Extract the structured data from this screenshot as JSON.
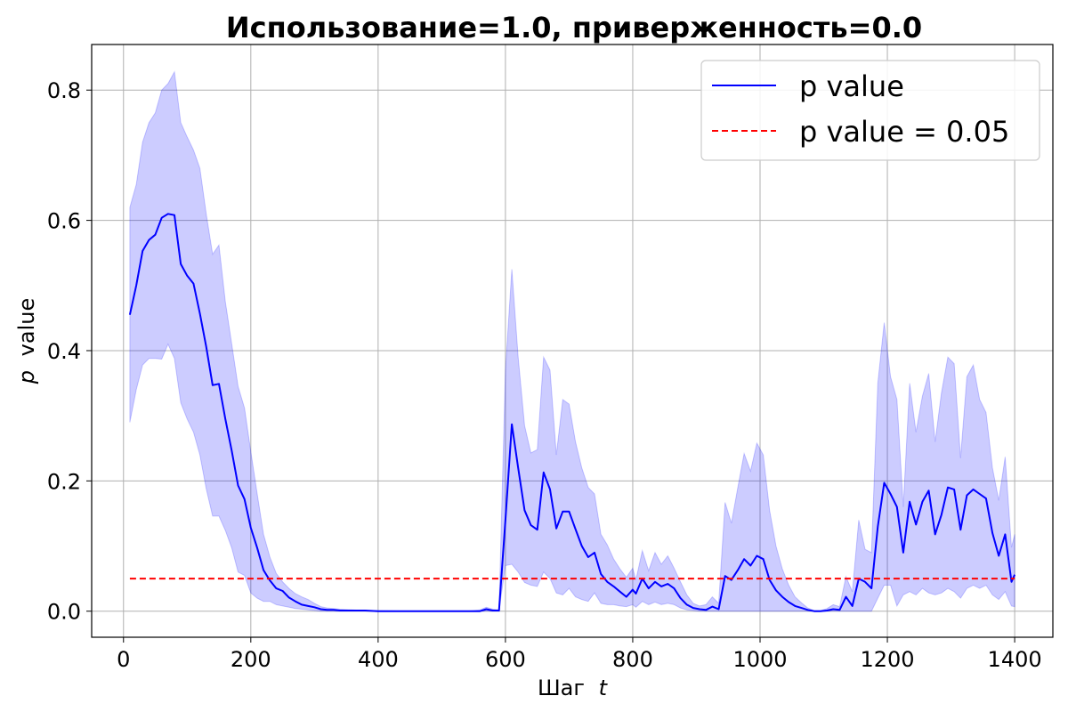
{
  "chart_data": {
    "type": "line",
    "title": "Использование=1.0, приверженность=0.0",
    "xlabel_text": "Шаг",
    "xlabel_var": "t",
    "ylabel_var": "p",
    "ylabel_text": "value",
    "xlim": [
      -50,
      1460
    ],
    "ylim": [
      -0.04,
      0.87
    ],
    "xticks": [
      0,
      200,
      400,
      600,
      800,
      1000,
      1200,
      1400
    ],
    "yticks": [
      0.0,
      0.2,
      0.4,
      0.6,
      0.8
    ],
    "ytick_labels": [
      "0.0",
      "0.2",
      "0.4",
      "0.6",
      "0.8"
    ],
    "grid": true,
    "legend_position": "top-right",
    "series": [
      {
        "name": "p value",
        "style": "solid",
        "color": "#0000ff",
        "band_color": "#0000ff",
        "points": [
          [
            10,
            0.455
          ],
          [
            20,
            0.5
          ],
          [
            30,
            0.553
          ],
          [
            40,
            0.57
          ],
          [
            50,
            0.578
          ],
          [
            60,
            0.604
          ],
          [
            70,
            0.61
          ],
          [
            80,
            0.608
          ],
          [
            90,
            0.533
          ],
          [
            100,
            0.515
          ],
          [
            110,
            0.503
          ],
          [
            120,
            0.457
          ],
          [
            130,
            0.406
          ],
          [
            140,
            0.347
          ],
          [
            150,
            0.349
          ],
          [
            160,
            0.295
          ],
          [
            170,
            0.246
          ],
          [
            180,
            0.193
          ],
          [
            190,
            0.172
          ],
          [
            200,
            0.128
          ],
          [
            210,
            0.097
          ],
          [
            220,
            0.063
          ],
          [
            230,
            0.047
          ],
          [
            240,
            0.035
          ],
          [
            250,
            0.031
          ],
          [
            260,
            0.021
          ],
          [
            270,
            0.015
          ],
          [
            280,
            0.01
          ],
          [
            290,
            0.008
          ],
          [
            300,
            0.006
          ],
          [
            310,
            0.003
          ],
          [
            320,
            0.002
          ],
          [
            330,
            0.002
          ],
          [
            340,
            0.001
          ],
          [
            360,
            0.001
          ],
          [
            380,
            0.001
          ],
          [
            400,
            0.0
          ],
          [
            450,
            0.0
          ],
          [
            500,
            0.0
          ],
          [
            540,
            0.0
          ],
          [
            560,
            0.0
          ],
          [
            570,
            0.003
          ],
          [
            580,
            0.001
          ],
          [
            590,
            0.001
          ],
          [
            600,
            0.14
          ],
          [
            610,
            0.287
          ],
          [
            620,
            0.22
          ],
          [
            630,
            0.155
          ],
          [
            640,
            0.132
          ],
          [
            650,
            0.125
          ],
          [
            660,
            0.213
          ],
          [
            670,
            0.187
          ],
          [
            680,
            0.127
          ],
          [
            690,
            0.153
          ],
          [
            700,
            0.153
          ],
          [
            710,
            0.126
          ],
          [
            720,
            0.1
          ],
          [
            730,
            0.083
          ],
          [
            740,
            0.09
          ],
          [
            750,
            0.057
          ],
          [
            760,
            0.045
          ],
          [
            770,
            0.038
          ],
          [
            780,
            0.03
          ],
          [
            790,
            0.022
          ],
          [
            800,
            0.033
          ],
          [
            805,
            0.027
          ],
          [
            815,
            0.05
          ],
          [
            825,
            0.035
          ],
          [
            835,
            0.045
          ],
          [
            845,
            0.038
          ],
          [
            855,
            0.042
          ],
          [
            865,
            0.035
          ],
          [
            875,
            0.02
          ],
          [
            885,
            0.01
          ],
          [
            895,
            0.005
          ],
          [
            905,
            0.003
          ],
          [
            915,
            0.002
          ],
          [
            925,
            0.007
          ],
          [
            935,
            0.003
          ],
          [
            945,
            0.054
          ],
          [
            955,
            0.048
          ],
          [
            965,
            0.063
          ],
          [
            975,
            0.08
          ],
          [
            985,
            0.07
          ],
          [
            995,
            0.085
          ],
          [
            1005,
            0.08
          ],
          [
            1015,
            0.048
          ],
          [
            1025,
            0.032
          ],
          [
            1035,
            0.022
          ],
          [
            1045,
            0.014
          ],
          [
            1055,
            0.008
          ],
          [
            1065,
            0.005
          ],
          [
            1075,
            0.002
          ],
          [
            1085,
            0.0
          ],
          [
            1095,
            0.0
          ],
          [
            1105,
            0.001
          ],
          [
            1115,
            0.003
          ],
          [
            1125,
            0.002
          ],
          [
            1135,
            0.022
          ],
          [
            1145,
            0.008
          ],
          [
            1155,
            0.05
          ],
          [
            1165,
            0.045
          ],
          [
            1175,
            0.035
          ],
          [
            1185,
            0.13
          ],
          [
            1195,
            0.197
          ],
          [
            1205,
            0.18
          ],
          [
            1215,
            0.16
          ],
          [
            1225,
            0.09
          ],
          [
            1235,
            0.168
          ],
          [
            1245,
            0.133
          ],
          [
            1255,
            0.168
          ],
          [
            1265,
            0.185
          ],
          [
            1275,
            0.118
          ],
          [
            1285,
            0.148
          ],
          [
            1295,
            0.19
          ],
          [
            1305,
            0.187
          ],
          [
            1315,
            0.125
          ],
          [
            1325,
            0.178
          ],
          [
            1335,
            0.187
          ],
          [
            1345,
            0.18
          ],
          [
            1355,
            0.173
          ],
          [
            1365,
            0.12
          ],
          [
            1375,
            0.085
          ],
          [
            1385,
            0.118
          ],
          [
            1395,
            0.045
          ],
          [
            1400,
            0.056
          ]
        ],
        "band": [
          [
            10,
            0.29,
            0.62
          ],
          [
            20,
            0.34,
            0.655
          ],
          [
            30,
            0.378,
            0.72
          ],
          [
            40,
            0.388,
            0.75
          ],
          [
            50,
            0.388,
            0.765
          ],
          [
            60,
            0.387,
            0.8
          ],
          [
            70,
            0.41,
            0.81
          ],
          [
            80,
            0.388,
            0.828
          ],
          [
            90,
            0.32,
            0.75
          ],
          [
            100,
            0.295,
            0.728
          ],
          [
            110,
            0.275,
            0.708
          ],
          [
            120,
            0.24,
            0.68
          ],
          [
            130,
            0.188,
            0.61
          ],
          [
            140,
            0.146,
            0.548
          ],
          [
            150,
            0.146,
            0.562
          ],
          [
            160,
            0.124,
            0.475
          ],
          [
            170,
            0.097,
            0.41
          ],
          [
            180,
            0.06,
            0.345
          ],
          [
            190,
            0.055,
            0.312
          ],
          [
            200,
            0.028,
            0.245
          ],
          [
            210,
            0.02,
            0.18
          ],
          [
            220,
            0.015,
            0.118
          ],
          [
            230,
            0.015,
            0.083
          ],
          [
            240,
            0.01,
            0.058
          ],
          [
            250,
            0.008,
            0.045
          ],
          [
            260,
            0.006,
            0.035
          ],
          [
            270,
            0.004,
            0.027
          ],
          [
            280,
            0.003,
            0.022
          ],
          [
            290,
            0.002,
            0.018
          ],
          [
            300,
            0.001,
            0.012
          ],
          [
            310,
            0.0,
            0.007
          ],
          [
            320,
            0.0,
            0.005
          ],
          [
            330,
            0.0,
            0.004
          ],
          [
            340,
            0.0,
            0.003
          ],
          [
            360,
            0.0,
            0.002
          ],
          [
            380,
            0.0,
            0.001
          ],
          [
            400,
            0.0,
            0.001
          ],
          [
            450,
            0.0,
            0.0
          ],
          [
            500,
            0.0,
            0.0
          ],
          [
            540,
            0.0,
            0.0
          ],
          [
            560,
            0.0,
            0.002
          ],
          [
            570,
            0.0,
            0.006
          ],
          [
            580,
            0.0,
            0.003
          ],
          [
            590,
            0.0,
            0.002
          ],
          [
            600,
            0.07,
            0.37
          ],
          [
            610,
            0.072,
            0.525
          ],
          [
            620,
            0.06,
            0.39
          ],
          [
            630,
            0.044,
            0.285
          ],
          [
            640,
            0.04,
            0.243
          ],
          [
            650,
            0.038,
            0.248
          ],
          [
            660,
            0.06,
            0.39
          ],
          [
            670,
            0.05,
            0.37
          ],
          [
            680,
            0.028,
            0.24
          ],
          [
            690,
            0.025,
            0.325
          ],
          [
            700,
            0.035,
            0.318
          ],
          [
            710,
            0.022,
            0.26
          ],
          [
            720,
            0.018,
            0.22
          ],
          [
            730,
            0.015,
            0.19
          ],
          [
            740,
            0.028,
            0.18
          ],
          [
            750,
            0.012,
            0.118
          ],
          [
            760,
            0.01,
            0.102
          ],
          [
            770,
            0.01,
            0.08
          ],
          [
            780,
            0.008,
            0.065
          ],
          [
            790,
            0.007,
            0.052
          ],
          [
            800,
            0.01,
            0.066
          ],
          [
            805,
            0.006,
            0.048
          ],
          [
            815,
            0.015,
            0.093
          ],
          [
            825,
            0.01,
            0.062
          ],
          [
            835,
            0.014,
            0.09
          ],
          [
            845,
            0.01,
            0.072
          ],
          [
            855,
            0.012,
            0.085
          ],
          [
            865,
            0.01,
            0.066
          ],
          [
            875,
            0.005,
            0.045
          ],
          [
            885,
            0.002,
            0.025
          ],
          [
            895,
            0.001,
            0.012
          ],
          [
            905,
            0.0,
            0.008
          ],
          [
            915,
            0.0,
            0.01
          ],
          [
            925,
            0.0,
            0.022
          ],
          [
            935,
            0.0,
            0.012
          ],
          [
            945,
            0.0,
            0.167
          ],
          [
            955,
            0.0,
            0.135
          ],
          [
            965,
            0.0,
            0.19
          ],
          [
            975,
            0.0,
            0.242
          ],
          [
            985,
            0.0,
            0.215
          ],
          [
            995,
            0.0,
            0.258
          ],
          [
            1005,
            0.0,
            0.24
          ],
          [
            1015,
            0.0,
            0.155
          ],
          [
            1025,
            0.0,
            0.1
          ],
          [
            1035,
            0.0,
            0.065
          ],
          [
            1045,
            0.0,
            0.04
          ],
          [
            1055,
            0.0,
            0.022
          ],
          [
            1065,
            0.0,
            0.013
          ],
          [
            1075,
            0.0,
            0.005
          ],
          [
            1085,
            0.0,
            0.001
          ],
          [
            1095,
            0.0,
            0.001
          ],
          [
            1105,
            0.0,
            0.004
          ],
          [
            1115,
            0.0,
            0.01
          ],
          [
            1125,
            0.0,
            0.007
          ],
          [
            1135,
            0.0,
            0.053
          ],
          [
            1145,
            0.0,
            0.03
          ],
          [
            1155,
            0.0,
            0.14
          ],
          [
            1165,
            0.0,
            0.095
          ],
          [
            1175,
            0.0,
            0.09
          ],
          [
            1185,
            0.02,
            0.35
          ],
          [
            1195,
            0.04,
            0.443
          ],
          [
            1205,
            0.04,
            0.36
          ],
          [
            1215,
            0.008,
            0.325
          ],
          [
            1225,
            0.025,
            0.16
          ],
          [
            1235,
            0.03,
            0.35
          ],
          [
            1245,
            0.025,
            0.275
          ],
          [
            1255,
            0.035,
            0.33
          ],
          [
            1265,
            0.028,
            0.365
          ],
          [
            1275,
            0.025,
            0.26
          ],
          [
            1285,
            0.028,
            0.335
          ],
          [
            1295,
            0.035,
            0.39
          ],
          [
            1305,
            0.03,
            0.38
          ],
          [
            1315,
            0.02,
            0.235
          ],
          [
            1325,
            0.035,
            0.36
          ],
          [
            1335,
            0.04,
            0.378
          ],
          [
            1345,
            0.035,
            0.325
          ],
          [
            1355,
            0.04,
            0.305
          ],
          [
            1365,
            0.025,
            0.22
          ],
          [
            1375,
            0.018,
            0.17
          ],
          [
            1385,
            0.03,
            0.237
          ],
          [
            1395,
            0.008,
            0.098
          ],
          [
            1400,
            0.007,
            0.118
          ]
        ]
      },
      {
        "name": "p value = 0.05",
        "style": "dashed",
        "color": "#ff0000",
        "points": [
          [
            10,
            0.05
          ],
          [
            1400,
            0.05
          ]
        ]
      }
    ]
  }
}
